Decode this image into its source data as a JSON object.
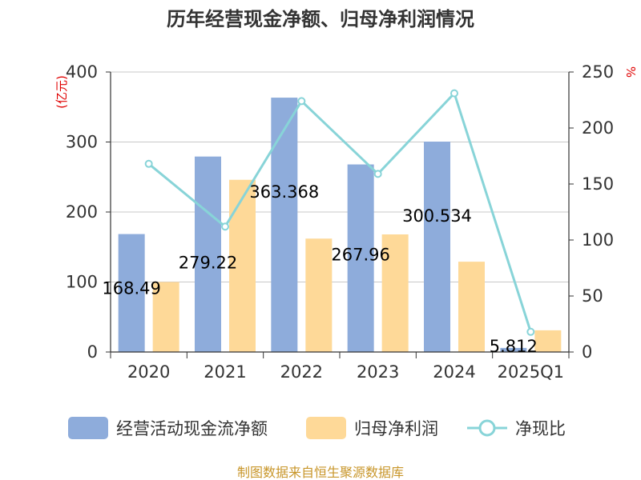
{
  "chart_data": {
    "type": "bar",
    "title": "历年经营现金净额、归母净利润情况",
    "ylabel_left": "(亿元)",
    "ylabel_right": "%",
    "ylim_left": [
      0,
      400
    ],
    "ylim_right": [
      0,
      250
    ],
    "left_ticks": [
      "0",
      "100",
      "200",
      "300",
      "400"
    ],
    "right_ticks": [
      "0",
      "50",
      "100",
      "150",
      "200",
      "250"
    ],
    "categories": [
      "2020",
      "2021",
      "2022",
      "2023",
      "2024",
      "2025Q1"
    ],
    "series": [
      {
        "name": "经营活动现金流净额",
        "type": "bar",
        "axis": "left",
        "color": "#8eacdb",
        "values": [
          168.49,
          279.22,
          363.368,
          267.96,
          300.534,
          5.812
        ]
      },
      {
        "name": "归母净利润",
        "type": "bar",
        "axis": "left",
        "color": "#fed998",
        "values": [
          100,
          246,
          162,
          168,
          129,
          31
        ]
      },
      {
        "name": "净现比",
        "type": "line",
        "axis": "right",
        "color": "#88d4d8",
        "values": [
          168,
          112,
          224,
          159,
          231,
          18
        ]
      }
    ],
    "data_labels": [
      "168.49",
      "279.22",
      "363.368",
      "267.96",
      "300.534",
      "5.812"
    ],
    "source": "制图数据来自恒生聚源数据库"
  }
}
